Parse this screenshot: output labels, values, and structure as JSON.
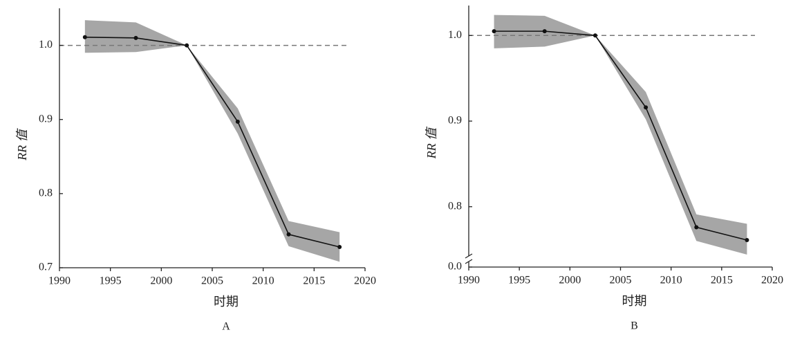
{
  "chart_data": [
    {
      "type": "line",
      "panel": "A",
      "x_label": "时期",
      "y_label": "RR 值",
      "x": [
        1992.5,
        1997.5,
        2002.5,
        2007.5,
        2012.5,
        2017.5
      ],
      "values": [
        1.011,
        1.01,
        1.0,
        0.897,
        0.745,
        0.728
      ],
      "lower": [
        0.99,
        0.991,
        1.0,
        0.881,
        0.729,
        0.708
      ],
      "upper": [
        1.034,
        1.031,
        1.0,
        0.915,
        0.763,
        0.748
      ],
      "color": "#111111",
      "band_color": "#a6a6a6",
      "hline": 1.0,
      "xlim": [
        1990,
        2020
      ],
      "xticks": [
        1990,
        1995,
        2000,
        2005,
        2010,
        2015,
        2020
      ],
      "ylim": [
        0.7,
        1.05
      ],
      "yticks": [
        0.7,
        0.8,
        0.9,
        {
          "value": 1.0,
          "label": "1.0"
        }
      ]
    },
    {
      "type": "line",
      "panel": "B",
      "x_label": "时期",
      "y_label": "RR 值",
      "x": [
        1992.5,
        1997.5,
        2002.5,
        2007.5,
        2012.5,
        2017.5
      ],
      "values": [
        1.005,
        1.005,
        1.0,
        0.916,
        0.776,
        0.761
      ],
      "lower": [
        0.985,
        0.987,
        1.0,
        0.902,
        0.76,
        0.744
      ],
      "upper": [
        1.024,
        1.023,
        1.0,
        0.934,
        0.791,
        0.78
      ],
      "color": "#111111",
      "band_color": "#a6a6a6",
      "hline": 1.0,
      "xlim": [
        1990,
        2020
      ],
      "xticks": [
        1990,
        1995,
        2000,
        2005,
        2010,
        2015,
        2020
      ],
      "ylim": [
        0,
        1.035
      ],
      "ybreak": 0.74,
      "yticks": [
        {
          "value": 0,
          "label": "0.0"
        },
        0.8,
        0.9,
        {
          "value": 1.0,
          "label": "1.0"
        }
      ]
    }
  ]
}
